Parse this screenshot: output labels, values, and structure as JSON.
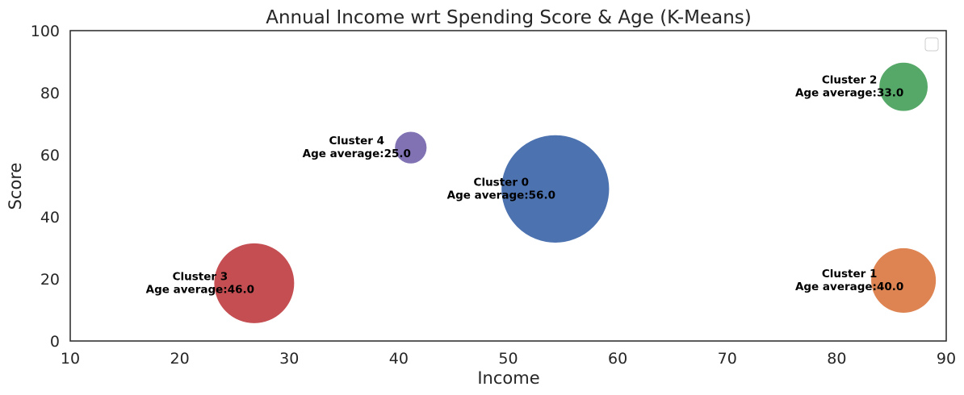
{
  "chart_data": {
    "type": "scatter",
    "title": "Annual Income wrt Spending Score & Age (K-Means)",
    "xlabel": "Income",
    "ylabel": "Score",
    "xlim": [
      10,
      90
    ],
    "ylim": [
      0,
      100
    ],
    "xticks": [
      "10",
      "20",
      "30",
      "40",
      "50",
      "60",
      "70",
      "80",
      "90"
    ],
    "yticks": [
      "0",
      "20",
      "40",
      "60",
      "80",
      "100"
    ],
    "grid": false,
    "legend": {
      "placement": "top-right",
      "entries": []
    },
    "points": [
      {
        "x": 54.3,
        "y": 49.0,
        "size": 56.0,
        "color": "#4c72b0",
        "label_line1": "Cluster 0",
        "label_line2": "Age average:56.0"
      },
      {
        "x": 86.1,
        "y": 19.5,
        "size": 40.0,
        "color": "#dd8452",
        "label_line1": "Cluster 1",
        "label_line2": "Age average:40.0"
      },
      {
        "x": 86.1,
        "y": 81.9,
        "size": 33.0,
        "color": "#55a868",
        "label_line1": "Cluster 2",
        "label_line2": "Age average:33.0"
      },
      {
        "x": 26.8,
        "y": 18.6,
        "size": 46.0,
        "color": "#c44e52",
        "label_line1": "Cluster 3",
        "label_line2": "Age average:46.0"
      },
      {
        "x": 41.1,
        "y": 62.3,
        "size": 25.0,
        "color": "#8172b3",
        "label_line1": "Cluster 4",
        "label_line2": "Age average:25.0"
      }
    ]
  }
}
